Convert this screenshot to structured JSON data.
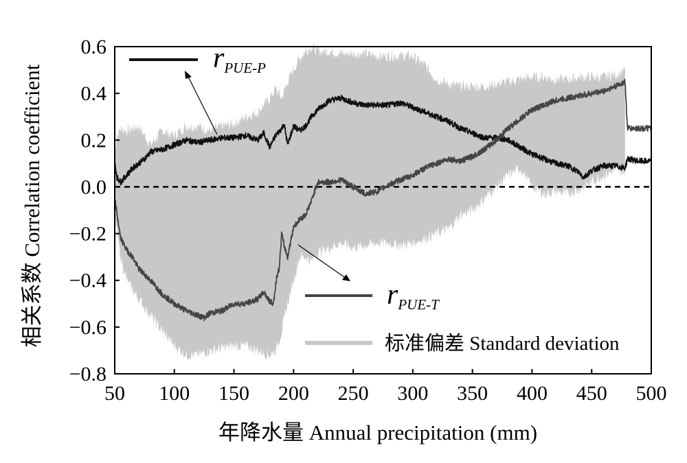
{
  "chart_data": {
    "type": "line",
    "xlabel": "年降水量 Annual precipitation (mm)",
    "ylabel": "相关系数 Correlation coefficient",
    "xlim": [
      50,
      500
    ],
    "ylim": [
      -0.8,
      0.6
    ],
    "x_ticks": [
      "50",
      "100",
      "150",
      "200",
      "250",
      "300",
      "350",
      "400",
      "450",
      "500"
    ],
    "y_ticks": [
      "0.6",
      "0.4",
      "0.2",
      "0.0",
      "−0.2",
      "−0.4",
      "−0.6",
      "−0.8"
    ],
    "grid": false,
    "reference_line": {
      "y": 0.0,
      "style": "dashed"
    },
    "series": [
      {
        "name": "r PUE-P",
        "color": "#111111",
        "x": [
          50,
          52,
          55,
          60,
          65,
          70,
          75,
          80,
          90,
          100,
          110,
          120,
          130,
          140,
          150,
          160,
          170,
          175,
          180,
          185,
          190,
          192,
          195,
          200,
          205,
          210,
          215,
          220,
          225,
          230,
          240,
          250,
          260,
          270,
          280,
          290,
          300,
          310,
          320,
          330,
          340,
          350,
          360,
          370,
          380,
          390,
          400,
          410,
          420,
          430,
          440,
          443,
          450,
          460,
          470,
          478,
          480,
          490,
          500
        ],
        "y": [
          0.1,
          0.04,
          0.02,
          0.05,
          0.08,
          0.1,
          0.12,
          0.15,
          0.16,
          0.18,
          0.2,
          0.19,
          0.2,
          0.21,
          0.21,
          0.22,
          0.2,
          0.23,
          0.17,
          0.22,
          0.25,
          0.27,
          0.18,
          0.26,
          0.24,
          0.26,
          0.3,
          0.33,
          0.35,
          0.37,
          0.38,
          0.36,
          0.35,
          0.35,
          0.35,
          0.36,
          0.34,
          0.32,
          0.3,
          0.28,
          0.25,
          0.23,
          0.21,
          0.21,
          0.2,
          0.17,
          0.14,
          0.12,
          0.1,
          0.09,
          0.06,
          0.04,
          0.07,
          0.09,
          0.09,
          0.08,
          0.12,
          0.11,
          0.11
        ]
      },
      {
        "name": "r PUE-T",
        "color": "#444444",
        "x": [
          50,
          52,
          55,
          60,
          65,
          70,
          80,
          90,
          100,
          110,
          120,
          125,
          130,
          140,
          150,
          160,
          170,
          175,
          180,
          183,
          186,
          188,
          190,
          192,
          195,
          200,
          205,
          210,
          215,
          220,
          230,
          240,
          250,
          260,
          270,
          280,
          290,
          300,
          310,
          320,
          330,
          340,
          350,
          360,
          370,
          380,
          390,
          400,
          410,
          420,
          430,
          440,
          450,
          460,
          470,
          478,
          480,
          490,
          500
        ],
        "y": [
          -0.05,
          -0.12,
          -0.22,
          -0.27,
          -0.3,
          -0.35,
          -0.4,
          -0.46,
          -0.5,
          -0.53,
          -0.55,
          -0.56,
          -0.54,
          -0.53,
          -0.5,
          -0.5,
          -0.48,
          -0.45,
          -0.49,
          -0.5,
          -0.38,
          -0.35,
          -0.2,
          -0.25,
          -0.3,
          -0.17,
          -0.14,
          -0.12,
          -0.06,
          0.02,
          0.02,
          0.03,
          0.0,
          -0.03,
          -0.02,
          0.01,
          0.03,
          0.05,
          0.08,
          0.1,
          0.12,
          0.11,
          0.13,
          0.16,
          0.2,
          0.25,
          0.29,
          0.33,
          0.35,
          0.37,
          0.38,
          0.39,
          0.4,
          0.41,
          0.43,
          0.45,
          0.25,
          0.25,
          0.25
        ]
      }
    ],
    "bands": [
      {
        "name": "标准偏差 Standard deviation",
        "color": "#c8c8c8",
        "x": [
          50,
          52,
          55,
          60,
          70,
          80,
          90,
          100,
          110,
          120,
          130,
          140,
          150,
          160,
          170,
          180,
          185,
          190,
          195,
          200,
          205,
          210,
          215,
          220,
          230,
          240,
          250,
          260,
          270,
          280,
          290,
          300,
          310,
          320,
          330,
          340,
          350,
          360,
          370,
          380,
          390,
          400,
          410,
          420,
          430,
          440,
          450,
          460,
          470,
          478
        ],
        "upper": [
          0.15,
          0.22,
          0.25,
          0.24,
          0.26,
          0.18,
          0.24,
          0.22,
          0.26,
          0.26,
          0.24,
          0.26,
          0.27,
          0.3,
          0.32,
          0.38,
          0.42,
          0.38,
          0.45,
          0.5,
          0.55,
          0.58,
          0.6,
          0.58,
          0.58,
          0.57,
          0.57,
          0.57,
          0.56,
          0.56,
          0.56,
          0.56,
          0.52,
          0.46,
          0.44,
          0.43,
          0.43,
          0.43,
          0.44,
          0.45,
          0.46,
          0.47,
          0.47,
          0.46,
          0.46,
          0.47,
          0.47,
          0.47,
          0.48,
          0.5
        ],
        "lower": [
          -0.1,
          -0.2,
          -0.3,
          -0.4,
          -0.48,
          -0.55,
          -0.62,
          -0.68,
          -0.72,
          -0.72,
          -0.7,
          -0.69,
          -0.68,
          -0.68,
          -0.7,
          -0.72,
          -0.7,
          -0.62,
          -0.5,
          -0.4,
          -0.3,
          -0.3,
          -0.32,
          -0.28,
          -0.26,
          -0.24,
          -0.26,
          -0.25,
          -0.24,
          -0.24,
          -0.25,
          -0.24,
          -0.22,
          -0.2,
          -0.18,
          -0.12,
          -0.1,
          -0.05,
          0.0,
          0.05,
          0.08,
          0.0,
          -0.03,
          -0.02,
          -0.03,
          -0.01,
          0.02,
          0.05,
          0.07,
          0.06
        ]
      }
    ],
    "legend": {
      "placement": "inside",
      "items": [
        {
          "symbol": "r",
          "subscript": "PUE-P",
          "color": "#111111"
        },
        {
          "symbol": "r",
          "subscript": "PUE-T",
          "color": "#444444"
        },
        {
          "label": "标准偏差 Standard deviation",
          "color": "#c8c8c8"
        }
      ]
    }
  }
}
